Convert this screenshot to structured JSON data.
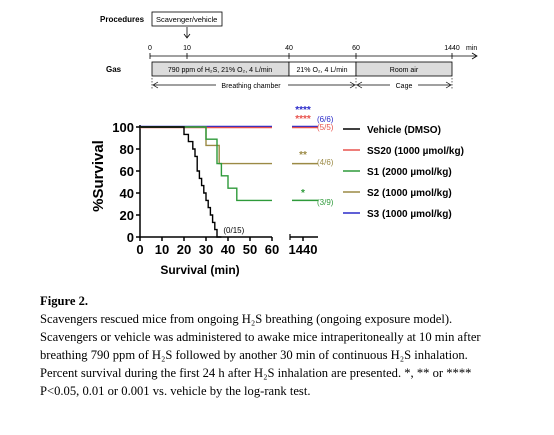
{
  "figure_label": "Figure 2.",
  "caption_lines": [
    "Scavengers rescued mice from ongoing H₂S breathing (ongoing exposure model).",
    "Scavengers or vehicle was administered to awake mice intraperitoneally at 10 min after",
    "breathing 790 ppm of H₂S followed by another 30 min of continuous H₂S inhalation.",
    "Percent survival during the first 24 h after H₂S inhalation are presented. *, ** or ****",
    "P<0.05, 0.01 or 0.001 vs. vehicle by the log-rank test."
  ],
  "procedure_schematic": {
    "procedures_label": "Procedures",
    "procedure_box": "Scavenger/vehicle",
    "gas_label": "Gas",
    "timeline_ticks": [
      "0",
      "10",
      "40",
      "60",
      "1440"
    ],
    "timeline_unit": "min",
    "gas_segments": [
      "790 ppm of H₂S, 21% O₂, 4 L/min",
      "21% O₂, 4 L/min",
      "Room air"
    ],
    "phase_labels": [
      "Breathing chamber",
      "Cage"
    ]
  },
  "chart_data": {
    "type": "line",
    "step": true,
    "xlabel": "Survival (min)",
    "ylabel": "%Survival",
    "ylim": [
      0,
      100
    ],
    "xlim": [
      0,
      60
    ],
    "x_ticks": [
      "0",
      "10",
      "20",
      "30",
      "40",
      "50",
      "60"
    ],
    "x_ticks_far": [
      "1440"
    ],
    "y_ticks": [
      "0",
      "20",
      "40",
      "60",
      "80",
      "100"
    ],
    "legend_position": "right",
    "series": [
      {
        "name": "Vehicle (DMSO)",
        "color": "#000000",
        "points": [
          [
            0,
            100
          ],
          [
            20,
            100
          ],
          [
            20,
            93.3
          ],
          [
            22,
            93.3
          ],
          [
            22,
            86.7
          ],
          [
            24,
            86.7
          ],
          [
            24,
            80
          ],
          [
            25,
            80
          ],
          [
            25,
            73.3
          ],
          [
            26,
            73.3
          ],
          [
            26,
            60
          ],
          [
            27,
            60
          ],
          [
            27,
            53.3
          ],
          [
            28,
            53.3
          ],
          [
            28,
            46.7
          ],
          [
            29,
            46.7
          ],
          [
            29,
            40
          ],
          [
            30,
            40
          ],
          [
            30,
            33.3
          ],
          [
            31,
            33.3
          ],
          [
            31,
            26.7
          ],
          [
            32,
            26.7
          ],
          [
            32,
            20
          ],
          [
            33,
            20
          ],
          [
            33,
            13.3
          ],
          [
            34,
            13.3
          ],
          [
            34,
            6.7
          ],
          [
            35,
            6.7
          ],
          [
            35,
            0
          ],
          [
            37,
            0
          ]
        ],
        "final": 0,
        "count_label": "(0/15)",
        "significance": ""
      },
      {
        "name": "SS20 (1000 µmol/kg)",
        "color": "#e8534e",
        "points": [
          [
            0,
            100
          ],
          [
            60,
            100
          ]
        ],
        "final": 100,
        "count_label": "(5/5)",
        "significance": "****"
      },
      {
        "name": "S1 (2000 µmol/kg)",
        "color": "#2e9a3a",
        "points": [
          [
            0,
            100
          ],
          [
            30,
            100
          ],
          [
            30,
            88.9
          ],
          [
            35,
            88.9
          ],
          [
            35,
            66.7
          ],
          [
            37,
            66.7
          ],
          [
            37,
            55.6
          ],
          [
            40,
            55.6
          ],
          [
            40,
            44.4
          ],
          [
            44,
            44.4
          ],
          [
            44,
            33.3
          ],
          [
            60,
            33.3
          ]
        ],
        "final": 33.3,
        "count_label": "(3/9)",
        "significance": "*"
      },
      {
        "name": "S2 (1000 µmol/kg)",
        "color": "#9b8a45",
        "points": [
          [
            0,
            100
          ],
          [
            30,
            100
          ],
          [
            30,
            83.3
          ],
          [
            36,
            83.3
          ],
          [
            36,
            66.7
          ],
          [
            60,
            66.7
          ]
        ],
        "final": 66.7,
        "count_label": "(4/6)",
        "significance": "**"
      },
      {
        "name": "S3 (1000 µmol/kg)",
        "color": "#2b2bc9",
        "points": [
          [
            0,
            100
          ],
          [
            60,
            100
          ]
        ],
        "final": 100,
        "count_label": "(6/6)",
        "significance": "****"
      }
    ]
  }
}
